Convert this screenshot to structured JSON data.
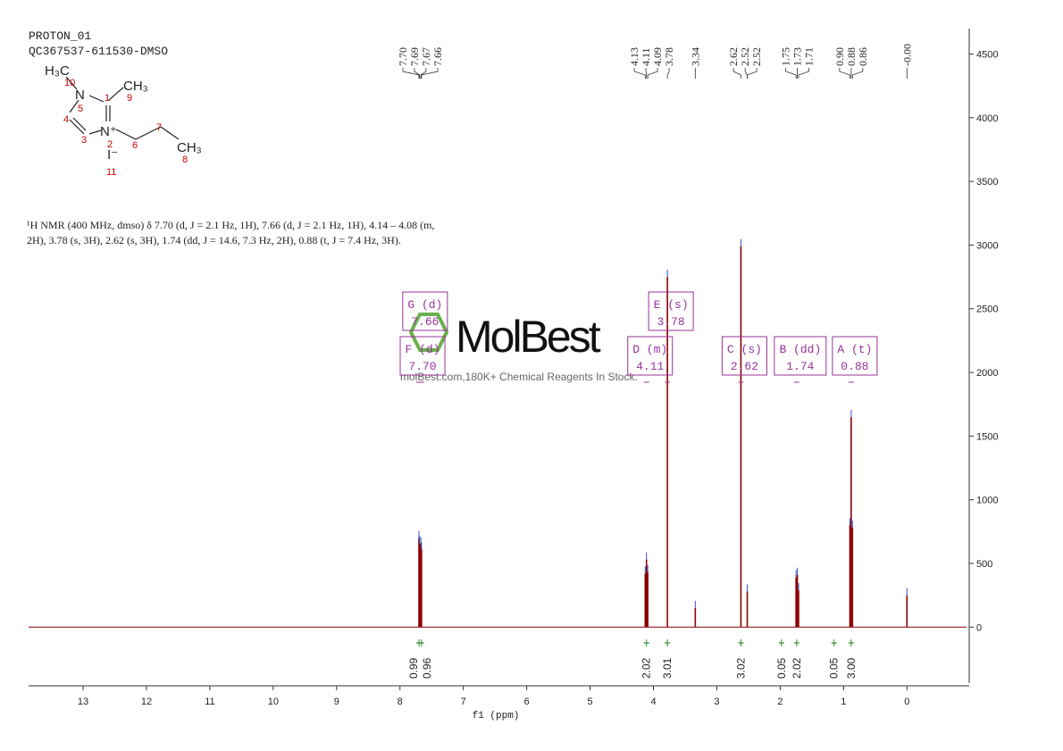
{
  "chart_data": {
    "type": "nmr",
    "title_lines": [
      "PROTON_01",
      "QC367537-611530-DMSO"
    ],
    "description_lines": [
      "¹H NMR (400 MHz, dmso) δ 7.70 (d, J = 2.1 Hz, 1H), 7.66 (d, J = 2.1 Hz, 1H), 4.14 – 4.08 (m,",
      "2H), 3.78 (s, 3H), 2.62 (s, 3H), 1.74 (dd, J = 14.6, 7.3 Hz, 2H), 0.88 (t, J = 7.4 Hz, 3H)."
    ],
    "structure_labels": [
      "H₃C",
      "10",
      "N",
      "5",
      "1",
      "CH₃",
      "9",
      "4",
      "3",
      "N⁺",
      "2",
      "6",
      "7",
      "CH₃",
      "8",
      "I⁻",
      "11"
    ],
    "watermark": "MolBest",
    "watermark_caption": "molBest.com,180K+ Chemical Reagents In Stock.",
    "xlabel": "f1 (ppm)",
    "xlim": [
      13.86,
      -0.94
    ],
    "xticks": [
      13,
      12,
      11,
      10,
      9,
      8,
      7,
      6,
      5,
      4,
      3,
      2,
      1,
      0
    ],
    "ylim": [
      -440,
      4700
    ],
    "yticks": [
      0,
      500,
      1000,
      1500,
      2000,
      2500,
      3000,
      3500,
      4000,
      4500
    ],
    "peaks": {
      "color": "#8b0000",
      "x": [
        7.7,
        7.69,
        7.67,
        7.66,
        4.13,
        4.11,
        4.09,
        3.78,
        3.34,
        2.62,
        2.52,
        1.75,
        1.73,
        1.71,
        0.9,
        0.88,
        0.86,
        0.0
      ],
      "values": [
        700,
        660,
        650,
        610,
        420,
        530,
        430,
        2750,
        150,
        2990,
        280,
        390,
        410,
        290,
        800,
        1650,
        780,
        250
      ]
    },
    "peak_labels": {
      "values": [
        7.7,
        7.69,
        7.67,
        7.66,
        4.13,
        4.11,
        4.09,
        3.78,
        3.34,
        2.62,
        2.52,
        2.52,
        1.75,
        1.73,
        1.71,
        0.9,
        0.88,
        0.86,
        0.0
      ],
      "value_labels": [
        "7.70",
        "7.69",
        "7.67",
        "7.66",
        "4.13",
        "4.11",
        "4.09",
        "3.78",
        "3.34",
        "2.62",
        "2.52",
        "2.52",
        "1.75",
        "1.73",
        "1.71",
        "0.90",
        "0.88",
        "0.86",
        "-0.00"
      ]
    },
    "integrals": {
      "color": "#2e8b2e",
      "x": [
        7.7,
        7.66,
        4.11,
        3.78,
        2.62,
        1.98,
        1.74,
        1.15,
        0.88
      ],
      "values": [
        0.99,
        0.96,
        2.02,
        3.01,
        3.02,
        0.05,
        2.02,
        0.05,
        3.0
      ],
      "value_labels": [
        "0.99",
        "0.96",
        "2.02",
        "3.01",
        "3.02",
        "0.05",
        "2.02",
        "0.05",
        "3.00"
      ]
    },
    "multiplets": {
      "color": "#993399",
      "names": [
        "G (d)",
        "F (d)",
        "E (s)",
        "D (m)",
        "C (s)",
        "B (dd)",
        "A (t)"
      ],
      "x": [
        7.66,
        7.7,
        3.78,
        4.11,
        2.62,
        1.74,
        0.88
      ],
      "value_labels": [
        "7.66",
        "7.70",
        "3.78",
        "4.11",
        "2.62",
        "1.74",
        "0.88"
      ]
    }
  }
}
